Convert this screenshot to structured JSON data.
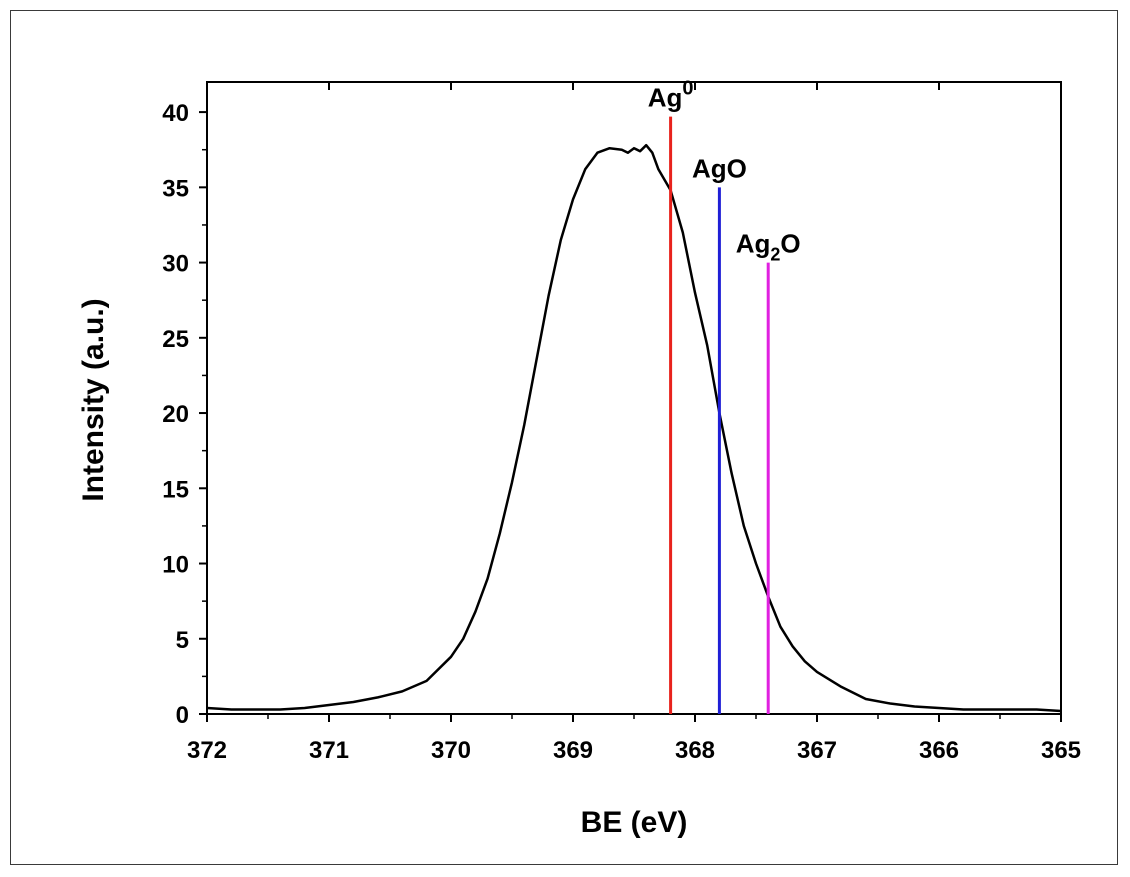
{
  "chart_data": {
    "type": "line",
    "xlabel": "BE (eV)",
    "ylabel": "Intensity (a.u.)",
    "xlim": [
      372,
      365
    ],
    "x_reversed": true,
    "ylim": [
      0,
      42
    ],
    "x_ticks": [
      372,
      371,
      370,
      369,
      368,
      367,
      366,
      365
    ],
    "y_ticks": [
      0,
      5,
      10,
      15,
      20,
      25,
      30,
      35,
      40
    ],
    "grid": false,
    "legend": "none",
    "series": [
      {
        "color": "#000000",
        "x": [
          372.0,
          371.8,
          371.6,
          371.4,
          371.2,
          371.0,
          370.8,
          370.6,
          370.4,
          370.2,
          370.0,
          369.9,
          369.8,
          369.7,
          369.6,
          369.5,
          369.4,
          369.3,
          369.2,
          369.1,
          369.0,
          368.9,
          368.8,
          368.7,
          368.6,
          368.55,
          368.5,
          368.45,
          368.4,
          368.35,
          368.3,
          368.2,
          368.1,
          368.0,
          367.9,
          367.8,
          367.7,
          367.6,
          367.5,
          367.4,
          367.3,
          367.2,
          367.1,
          367.0,
          366.8,
          366.6,
          366.4,
          366.2,
          366.0,
          365.8,
          365.6,
          365.4,
          365.2,
          365.0
        ],
        "y": [
          0.4,
          0.3,
          0.3,
          0.3,
          0.4,
          0.6,
          0.8,
          1.1,
          1.5,
          2.2,
          3.8,
          5.0,
          6.8,
          9.0,
          12.0,
          15.4,
          19.2,
          23.5,
          27.8,
          31.5,
          34.2,
          36.2,
          37.3,
          37.6,
          37.5,
          37.3,
          37.6,
          37.4,
          37.8,
          37.3,
          36.2,
          34.8,
          32.0,
          28.0,
          24.5,
          20.0,
          16.0,
          12.5,
          10.0,
          7.8,
          5.8,
          4.5,
          3.5,
          2.8,
          1.8,
          1.0,
          0.7,
          0.5,
          0.4,
          0.3,
          0.3,
          0.3,
          0.3,
          0.2
        ]
      }
    ],
    "reference_lines": [
      {
        "x": 368.2,
        "ymax": 39.7,
        "color": "#e8221c",
        "label_base": "Ag",
        "label_sup": "0",
        "label_sub": "",
        "label_tail": ""
      },
      {
        "x": 367.8,
        "ymax": 35.0,
        "color": "#1f1fd6",
        "label_base": "AgO",
        "label_sup": "",
        "label_sub": "",
        "label_tail": ""
      },
      {
        "x": 367.4,
        "ymax": 30.0,
        "color": "#e020e0",
        "label_base": "Ag",
        "label_sup": "",
        "label_sub": "2",
        "label_tail": "O"
      }
    ]
  }
}
